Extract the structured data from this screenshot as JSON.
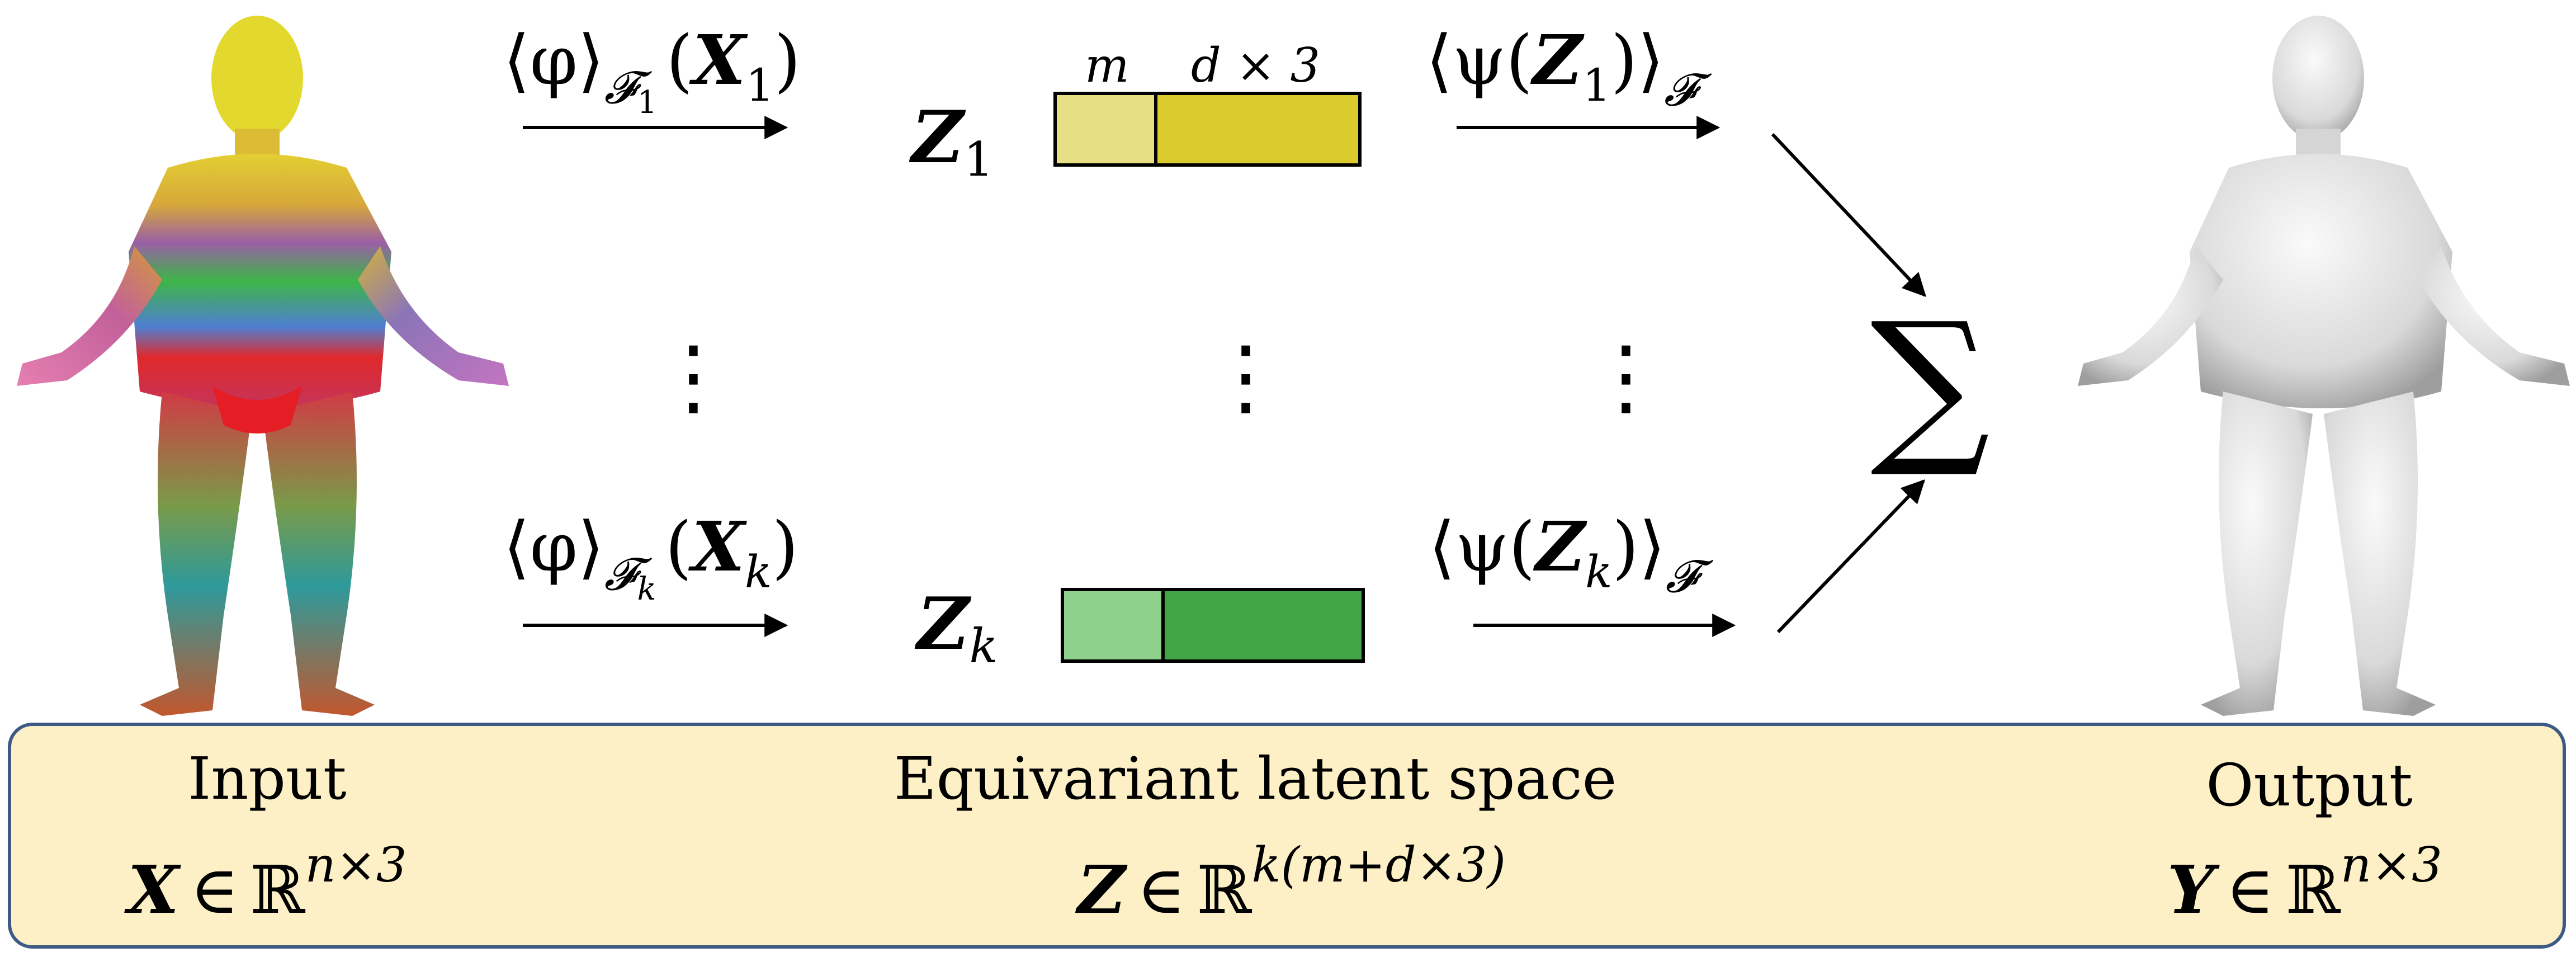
{
  "diagram": {
    "encoder": {
      "top": {
        "func": "⟨φ⟩",
        "sub": "𝓕",
        "subsub": "1",
        "arg": "X",
        "argsub": "1"
      },
      "bottom": {
        "func": "⟨φ⟩",
        "sub": "𝓕",
        "subsub": "k",
        "arg": "X",
        "argsub": "k"
      }
    },
    "latents": {
      "top": {
        "name": "Z",
        "sub": "1",
        "label_m": "m",
        "label_d": "d × 3",
        "color_m": "#e6df83",
        "color_d": "#dccb2c"
      },
      "bottom": {
        "name": "Z",
        "sub": "k",
        "color_m": "#8ecf8c",
        "color_d": "#42a546"
      }
    },
    "decoder": {
      "top": {
        "text": "⟨ψ(",
        "arg": "Z",
        "argsub": "1",
        "close": ")⟩",
        "sub": "𝓕"
      },
      "bottom": {
        "text": "⟨ψ(",
        "arg": "Z",
        "argsub": "k",
        "close": ")⟩",
        "sub": "𝓕"
      }
    },
    "ellipsis": "⋮",
    "sum": "∑"
  },
  "legend": {
    "input": {
      "label": "Input",
      "symbol": "X",
      "in": "∈",
      "field": "ℝ",
      "exp": "n×3"
    },
    "latent": {
      "label": "Equivariant latent space",
      "symbol": "Z",
      "in": "∈",
      "field": "ℝ",
      "exp": "k(m+d×3)"
    },
    "output": {
      "label": "Output",
      "symbol": "Y",
      "in": "∈",
      "field": "ℝ",
      "exp": "n×3"
    }
  }
}
